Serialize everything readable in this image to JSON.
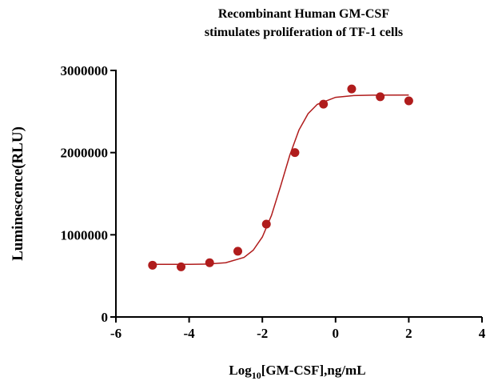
{
  "chart_data": {
    "type": "scatter",
    "title": [
      "Recombinant Human GM-CSF",
      "stimulates proliferation of TF-1 cells"
    ],
    "y_label": "Luminescence(RLU)",
    "x_label": [
      "Log",
      "10",
      "[GM-CSF],ng/mL"
    ],
    "xlim": [
      -6,
      4
    ],
    "xticks": [
      -6,
      -4,
      -2,
      0,
      2,
      4
    ],
    "ylim": [
      0,
      3000000
    ],
    "yticks": [
      0,
      1000000,
      2000000,
      3000000
    ],
    "series": [
      {
        "kind": "points",
        "color": "#b01c1c",
        "x": [
          -5,
          -4.22,
          -3.44,
          -2.67,
          -1.89,
          -1.11,
          -0.33,
          0.44,
          1.22,
          2.0
        ],
        "values": [
          630000,
          610000,
          660000,
          800000,
          1130000,
          2000000,
          2590000,
          2775000,
          2680000,
          2630000
        ]
      },
      {
        "kind": "line",
        "color": "#b01c1c",
        "x": [
          -5,
          -4.5,
          -4,
          -3.5,
          -3,
          -2.5,
          -2.25,
          -2,
          -1.75,
          -1.5,
          -1.25,
          -1,
          -0.75,
          -0.5,
          0,
          0.5,
          1,
          2
        ],
        "values": [
          640000,
          640200,
          641000,
          644000,
          660000,
          725000,
          812000,
          973000,
          1236000,
          1594000,
          1969000,
          2275000,
          2474000,
          2587000,
          2673000,
          2694000,
          2699000,
          2700000
        ]
      }
    ]
  }
}
